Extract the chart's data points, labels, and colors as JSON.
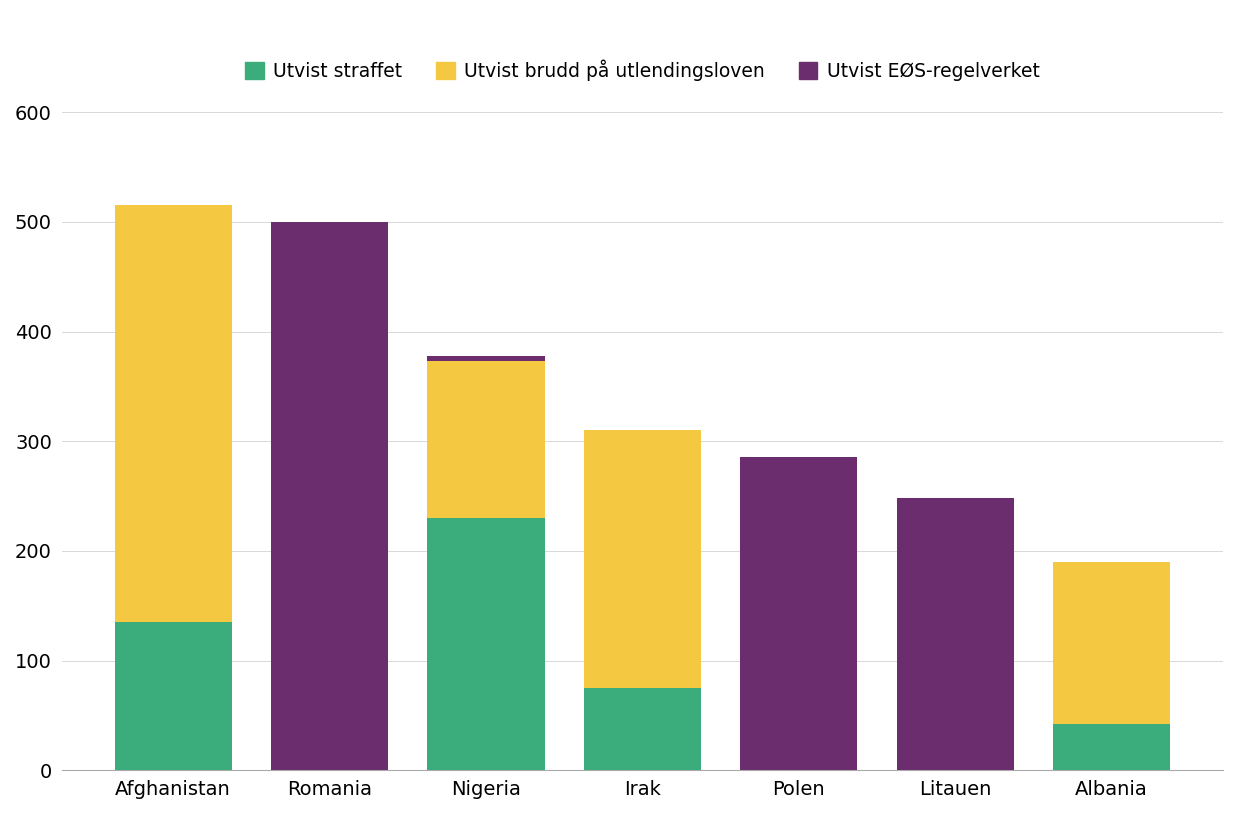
{
  "categories": [
    "Afghanistan",
    "Romania",
    "Nigeria",
    "Irak",
    "Polen",
    "Litauen",
    "Albania"
  ],
  "straffet": [
    135,
    0,
    230,
    75,
    0,
    0,
    42
  ],
  "brudd": [
    380,
    0,
    143,
    235,
    0,
    0,
    148
  ],
  "eos": [
    0,
    500,
    5,
    0,
    286,
    248,
    0
  ],
  "color_straffet": "#3bac7c",
  "color_brudd": "#f5c842",
  "color_eos": "#6b2d6e",
  "legend_labels": [
    "Utvist straffet",
    "Utvist brudd på utlendingsloven",
    "Utvist EØS-regelverket"
  ],
  "ylim": [
    0,
    620
  ],
  "yticks": [
    0,
    100,
    200,
    300,
    400,
    500,
    600
  ],
  "background_color": "#ffffff",
  "bar_width": 0.75
}
